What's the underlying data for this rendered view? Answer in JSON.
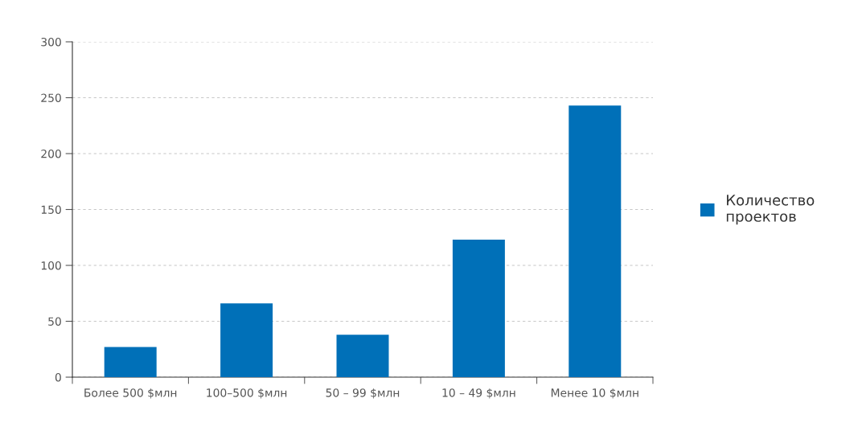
{
  "chart_data": {
    "type": "bar",
    "categories": [
      "Более 500 $млн",
      "100–500 $млн",
      "50 – 99 $млн",
      "10 – 49 $млн",
      "Менее 10 $млн"
    ],
    "series": [
      {
        "name": "Количество\nпроектов",
        "color": "#0070b8",
        "values": [
          27,
          66,
          38,
          123,
          243
        ]
      }
    ],
    "ylim": [
      0,
      300
    ],
    "yticks": [
      0,
      50,
      100,
      150,
      200,
      250,
      300
    ],
    "grid": "y",
    "legend": "right"
  }
}
